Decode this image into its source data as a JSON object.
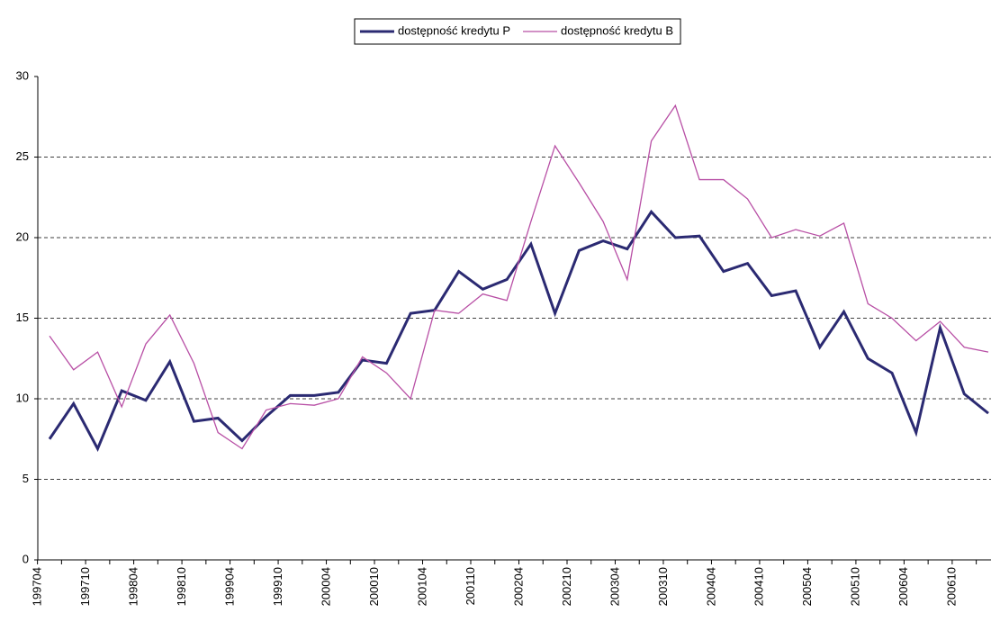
{
  "chart_data": {
    "type": "line",
    "categories": [
      "199704",
      null,
      "199710",
      null,
      "199804",
      null,
      "199810",
      null,
      "199904",
      null,
      "199910",
      null,
      "200004",
      null,
      "200010",
      null,
      "200104",
      null,
      "200110",
      null,
      "200204",
      null,
      "200210",
      null,
      "200304",
      null,
      "200310",
      null,
      "200404",
      null,
      "200410",
      null,
      "200504",
      null,
      "200510",
      null,
      "200604",
      null,
      "200610",
      null
    ],
    "series": [
      {
        "name": "dostępność kredytu P",
        "color": "#2b2a72",
        "values": [
          7.5,
          9.7,
          6.9,
          10.5,
          9.9,
          12.3,
          8.6,
          8.8,
          7.4,
          8.9,
          10.2,
          10.2,
          10.4,
          12.4,
          12.2,
          15.3,
          15.5,
          17.9,
          16.8,
          17.4,
          19.6,
          15.3,
          19.2,
          19.8,
          19.3,
          21.6,
          20.0,
          20.1,
          17.9,
          18.4,
          16.4,
          16.7,
          13.2,
          15.4,
          12.5,
          11.6,
          7.9,
          14.4,
          10.3,
          9.1
        ]
      },
      {
        "name": "dostępność kredytu B",
        "color": "#b84fa5",
        "values": [
          13.9,
          11.8,
          12.9,
          9.5,
          13.4,
          15.2,
          12.2,
          7.9,
          6.9,
          9.3,
          9.7,
          9.6,
          10.0,
          12.6,
          11.6,
          10.0,
          15.5,
          15.3,
          16.5,
          16.1,
          21.0,
          25.7,
          23.4,
          21.0,
          17.4,
          26.0,
          28.2,
          23.6,
          23.6,
          22.4,
          20.0,
          20.5,
          20.1,
          20.9,
          15.9,
          15.0,
          13.6,
          14.8,
          13.2,
          12.9
        ]
      }
    ],
    "ylim": [
      0,
      30
    ],
    "yticks": [
      0,
      5,
      10,
      15,
      20,
      25,
      30
    ],
    "grid": true,
    "legend": "top"
  }
}
